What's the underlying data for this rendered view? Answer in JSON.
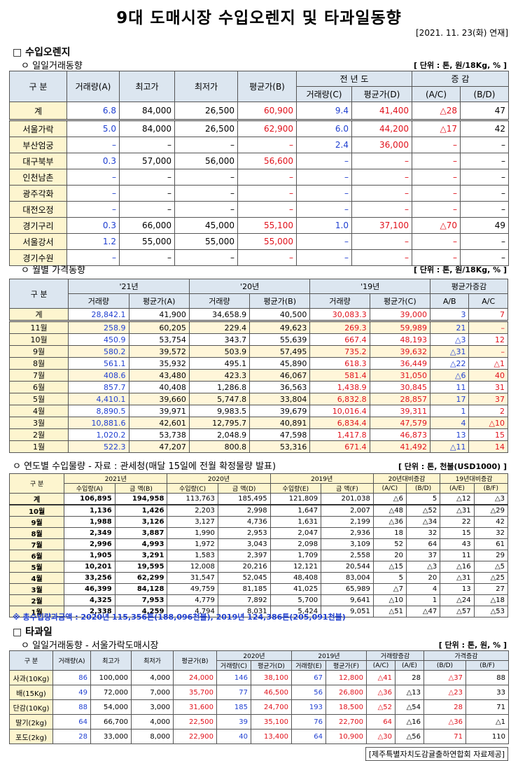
{
  "title": "9대 도매시장 수입오렌지 및 타과일동향",
  "date": "[2021. 11. 23(화) 연재]",
  "s1": {
    "heading": "□ 수입오렌지",
    "sub1": "ㅇ 일일거래동향",
    "unit1": "[ 단위 : 톤, 원/18Kg, % ]",
    "t1_headers": {
      "gubun": "구   분",
      "vol": "거래량(A)",
      "hi": "최고가",
      "lo": "최저가",
      "avg": "평균가(B)",
      "prev": "전 년 도",
      "pvol": "거래량(C)",
      "pavg": "평균가(D)",
      "chg": "증   감",
      "ac": "(A/C)",
      "bd": "(B/D)"
    },
    "t1_rows": [
      {
        "name": "계",
        "vol": "6.8",
        "hi": "84,000",
        "lo": "26,500",
        "avg": "60,900",
        "pvol": "9.4",
        "pavg": "41,400",
        "ac": "△28",
        "bd": "47"
      },
      {
        "name": "서울가락",
        "vol": "5.0",
        "hi": "84,000",
        "lo": "26,500",
        "avg": "62,900",
        "pvol": "6.0",
        "pavg": "44,200",
        "ac": "△17",
        "bd": "42"
      },
      {
        "name": "부산엄궁",
        "vol": "–",
        "hi": "–",
        "lo": "–",
        "avg": "–",
        "pvol": "2.4",
        "pavg": "36,000",
        "ac": "–",
        "bd": "–"
      },
      {
        "name": "대구북부",
        "vol": "0.3",
        "hi": "57,000",
        "lo": "56,000",
        "avg": "56,600",
        "pvol": "–",
        "pavg": "–",
        "ac": "–",
        "bd": "–"
      },
      {
        "name": "인천남촌",
        "vol": "–",
        "hi": "–",
        "lo": "–",
        "avg": "–",
        "pvol": "–",
        "pavg": "–",
        "ac": "–",
        "bd": "–"
      },
      {
        "name": "광주각화",
        "vol": "–",
        "hi": "–",
        "lo": "–",
        "avg": "–",
        "pvol": "–",
        "pavg": "–",
        "ac": "–",
        "bd": "–"
      },
      {
        "name": "대전오정",
        "vol": "–",
        "hi": "–",
        "lo": "–",
        "avg": "–",
        "pvol": "–",
        "pavg": "–",
        "ac": "–",
        "bd": "–"
      },
      {
        "name": "경기구리",
        "vol": "0.3",
        "hi": "66,000",
        "lo": "45,000",
        "avg": "55,100",
        "pvol": "1.0",
        "pavg": "37,100",
        "ac": "△70",
        "bd": "49"
      },
      {
        "name": "서울강서",
        "vol": "1.2",
        "hi": "55,000",
        "lo": "55,000",
        "avg": "55,000",
        "pvol": "–",
        "pavg": "–",
        "ac": "–",
        "bd": "–"
      },
      {
        "name": "경기수원",
        "vol": "–",
        "hi": "–",
        "lo": "–",
        "avg": "–",
        "pvol": "–",
        "pavg": "–",
        "ac": "–",
        "bd": "–"
      }
    ],
    "sub2": "ㅇ 월별 가격동향",
    "unit2": "[ 단위 : 톤, 원/18Kg, % ]",
    "t2_headers": {
      "gubun": "구   분",
      "y21": "'21년",
      "y20": "'20년",
      "y19": "'19년",
      "chg": "평균가증감",
      "vol": "거래량",
      "avgA": "평균가(A)",
      "avgB": "평균가(B)",
      "avgC": "평균가(C)",
      "ab": "A/B",
      "ac": "A/C"
    },
    "t2_rows": [
      {
        "m": "계",
        "v21": "28,842.1",
        "a21": "41,900",
        "v20": "34,658.9",
        "a20": "40,500",
        "v19": "30,083.3",
        "a19": "39,000",
        "ab": "3",
        "ac": "7"
      },
      {
        "m": "11월",
        "v21": "258.9",
        "a21": "60,205",
        "v20": "229.4",
        "a20": "49,623",
        "v19": "269.3",
        "a19": "59,989",
        "ab": "21",
        "ac": "–"
      },
      {
        "m": "10월",
        "v21": "450.9",
        "a21": "53,754",
        "v20": "343.7",
        "a20": "55,639",
        "v19": "667.4",
        "a19": "48,193",
        "ab": "△3",
        "ac": "12"
      },
      {
        "m": "9월",
        "v21": "580.2",
        "a21": "39,572",
        "v20": "503.9",
        "a20": "57,495",
        "v19": "735.2",
        "a19": "39,632",
        "ab": "△31",
        "ac": "–"
      },
      {
        "m": "8월",
        "v21": "561.1",
        "a21": "35,932",
        "v20": "495.1",
        "a20": "45,890",
        "v19": "618.3",
        "a19": "36,449",
        "ab": "△22",
        "ac": "△1"
      },
      {
        "m": "7월",
        "v21": "408.6",
        "a21": "43,480",
        "v20": "423.3",
        "a20": "46,067",
        "v19": "581.4",
        "a19": "31,050",
        "ab": "△6",
        "ac": "40"
      },
      {
        "m": "6월",
        "v21": "857.7",
        "a21": "40,408",
        "v20": "1,286.8",
        "a20": "36,563",
        "v19": "1,438.9",
        "a19": "30,845",
        "ab": "11",
        "ac": "31"
      },
      {
        "m": "5월",
        "v21": "4,410.1",
        "a21": "39,660",
        "v20": "5,747.8",
        "a20": "33,804",
        "v19": "6,832.8",
        "a19": "28,857",
        "ab": "17",
        "ac": "37"
      },
      {
        "m": "4월",
        "v21": "8,890.5",
        "a21": "39,971",
        "v20": "9,983.5",
        "a20": "39,679",
        "v19": "10,016.4",
        "a19": "39,311",
        "ab": "1",
        "ac": "2"
      },
      {
        "m": "3월",
        "v21": "10,881.6",
        "a21": "42,601",
        "v20": "12,795.7",
        "a20": "40,891",
        "v19": "6,834.4",
        "a19": "47,579",
        "ab": "4",
        "ac": "△10"
      },
      {
        "m": "2월",
        "v21": "1,020.2",
        "a21": "53,738",
        "v20": "2,048.9",
        "a20": "47,598",
        "v19": "1,417.8",
        "a19": "46,873",
        "ab": "13",
        "ac": "15"
      },
      {
        "m": "1월",
        "v21": "522.3",
        "a21": "47,207",
        "v20": "800.8",
        "a20": "53,316",
        "v19": "671.4",
        "a19": "41,492",
        "ab": "△11",
        "ac": "14"
      }
    ],
    "sub3": "ㅇ 연도별 수입물량 - 자료 : 관세청(매달 15일에 전월 확정물량 발표)",
    "unit3": "[ 단위 : 톤, 천불(USD1000) ]",
    "t3_headers": {
      "gubun": "구 분",
      "y21": "2021년",
      "y20": "2020년",
      "y19": "2019년",
      "c20": "20년대비증감",
      "c19": "19년대비증감",
      "qa": "수입량(A)",
      "ab": "금  액(B)",
      "qc": "수입량(C)",
      "ad": "금  액(D)",
      "qe": "수입량(E)",
      "af": "금  액(F)",
      "h_ac": "(A/C)",
      "h_bd": "(B/D)",
      "h_ae": "(A/E)",
      "h_bf": "(B/F)"
    },
    "t3_rows": [
      {
        "m": "계",
        "qa": "106,895",
        "ab": "194,958",
        "qc": "113,763",
        "ad": "185,495",
        "qe": "121,809",
        "af": "201,038",
        "ac": "△6",
        "bd": "5",
        "ae": "△12",
        "bf": "△3"
      },
      {
        "m": "10월",
        "qa": "1,136",
        "ab": "1,426",
        "qc": "2,203",
        "ad": "2,998",
        "qe": "1,647",
        "af": "2,007",
        "ac": "△48",
        "bd": "△52",
        "ae": "△31",
        "bf": "△29"
      },
      {
        "m": "9월",
        "qa": "1,988",
        "ab": "3,126",
        "qc": "3,127",
        "ad": "4,736",
        "qe": "1,631",
        "af": "2,199",
        "ac": "△36",
        "bd": "△34",
        "ae": "22",
        "bf": "42"
      },
      {
        "m": "8월",
        "qa": "2,349",
        "ab": "3,887",
        "qc": "1,990",
        "ad": "2,953",
        "qe": "2,047",
        "af": "2,936",
        "ac": "18",
        "bd": "32",
        "ae": "15",
        "bf": "32"
      },
      {
        "m": "7월",
        "qa": "2,996",
        "ab": "4,993",
        "qc": "1,972",
        "ad": "3,043",
        "qe": "2,098",
        "af": "3,109",
        "ac": "52",
        "bd": "64",
        "ae": "43",
        "bf": "61"
      },
      {
        "m": "6월",
        "qa": "1,905",
        "ab": "3,291",
        "qc": "1,583",
        "ad": "2,397",
        "qe": "1,709",
        "af": "2,558",
        "ac": "20",
        "bd": "37",
        "ae": "11",
        "bf": "29"
      },
      {
        "m": "5월",
        "qa": "10,201",
        "ab": "19,595",
        "qc": "12,008",
        "ad": "20,216",
        "qe": "12,121",
        "af": "20,544",
        "ac": "△15",
        "bd": "△3",
        "ae": "△16",
        "bf": "△5"
      },
      {
        "m": "4월",
        "qa": "33,256",
        "ab": "62,299",
        "qc": "31,547",
        "ad": "52,045",
        "qe": "48,408",
        "af": "83,004",
        "ac": "5",
        "bd": "20",
        "ae": "△31",
        "bf": "△25"
      },
      {
        "m": "3월",
        "qa": "46,399",
        "ab": "84,128",
        "qc": "49,759",
        "ad": "81,185",
        "qe": "41,025",
        "af": "65,989",
        "ac": "△7",
        "bd": "4",
        "ae": "13",
        "bf": "27"
      },
      {
        "m": "2월",
        "qa": "4,325",
        "ab": "7,953",
        "qc": "4,779",
        "ad": "7,892",
        "qe": "5,700",
        "af": "9,641",
        "ac": "△10",
        "bd": "1",
        "ae": "△24",
        "bf": "△18"
      },
      {
        "m": "1월",
        "qa": "2,338",
        "ab": "4,259",
        "qc": "4,794",
        "ad": "8,031",
        "qe": "5,424",
        "af": "9,051",
        "ac": "△51",
        "bd": "△47",
        "ae": "△57",
        "bf": "△53"
      }
    ],
    "note": "※ 총수입량과금액 : 2020년 115,356톤(188,096천불),  2019년 124,386톤(205,091천불)"
  },
  "s2": {
    "heading": "□ 타과일",
    "sub1": "ㅇ 일일거래동향 - 서울가락도매시장",
    "unit1": "[ 단위 : 톤, 원, % ]",
    "t4_headers": {
      "gubun": "구  분",
      "vol": "거래량(A)",
      "hi": "최고가",
      "lo": "최저가",
      "avg": "평균가(B)",
      "y20": "2020년",
      "y19": "2019년",
      "vchg": "거래량증감",
      "pchg": "가격증감",
      "vc": "거래량(C)",
      "ad": "평균가(D)",
      "ve": "거래량(E)",
      "af": "평균가(F)",
      "h_ac": "(A/C)",
      "h_ae": "(A/E)",
      "h_bd": "(B/D)",
      "h_bf": "(B/F)"
    },
    "t4_rows": [
      {
        "name": "사과(10Kg)",
        "vol": "86",
        "hi": "100,000",
        "lo": "4,000",
        "avg": "24,000",
        "vc": "146",
        "ad": "38,100",
        "ve": "67",
        "af": "12,800",
        "ac": "△41",
        "ae": "28",
        "bd": "△37",
        "bf": "88"
      },
      {
        "name": "배(15Kg)",
        "vol": "49",
        "hi": "72,000",
        "lo": "7,000",
        "avg": "35,700",
        "vc": "77",
        "ad": "46,500",
        "ve": "56",
        "af": "26,800",
        "ac": "△36",
        "ae": "△13",
        "bd": "△23",
        "bf": "33"
      },
      {
        "name": "단감(10Kg)",
        "vol": "88",
        "hi": "54,000",
        "lo": "3,000",
        "avg": "31,600",
        "vc": "185",
        "ad": "24,700",
        "ve": "193",
        "af": "18,500",
        "ac": "△52",
        "ae": "△54",
        "bd": "28",
        "bf": "71"
      },
      {
        "name": "딸기(2kg)",
        "vol": "64",
        "hi": "66,700",
        "lo": "4,000",
        "avg": "22,500",
        "vc": "39",
        "ad": "35,100",
        "ve": "76",
        "af": "22,700",
        "ac": "64",
        "ae": "△16",
        "bd": "△36",
        "bf": "△1"
      },
      {
        "name": "포도(2kg)",
        "vol": "28",
        "hi": "33,000",
        "lo": "8,000",
        "avg": "22,900",
        "vc": "40",
        "ad": "13,400",
        "ve": "64",
        "af": "10,900",
        "ac": "△30",
        "ae": "△56",
        "bd": "71",
        "bf": "110"
      }
    ]
  },
  "source": "[제주특별자치도감귤출하연합회 자료제공]"
}
